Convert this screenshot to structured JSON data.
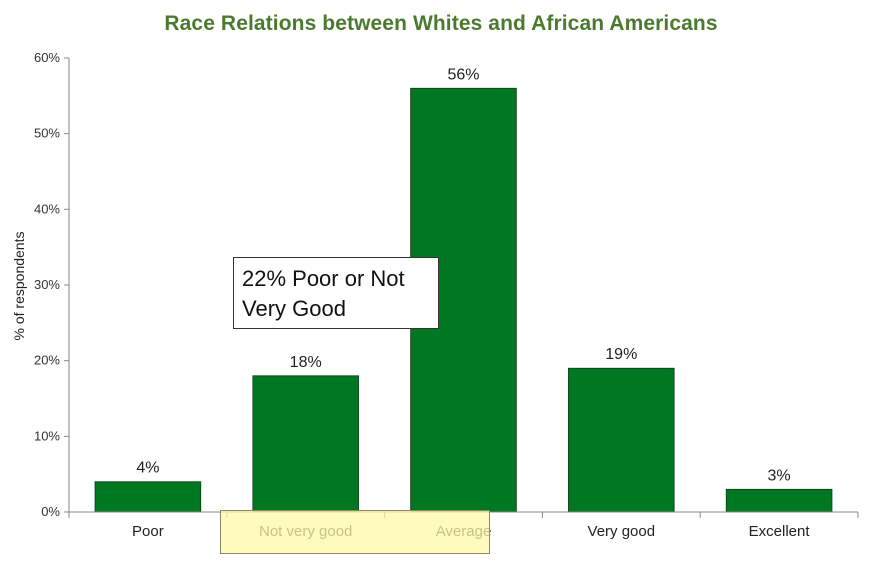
{
  "colors": {
    "bar": "#007722",
    "axis": "#888888",
    "title": "#4a7a2e"
  },
  "chart_data": {
    "type": "bar",
    "title": "Race Relations between Whites and African Americans",
    "xlabel": "",
    "ylabel": "% of respondents",
    "categories": [
      "Poor",
      "Not very good",
      "Average",
      "Very good",
      "Excellent"
    ],
    "values": [
      4,
      18,
      56,
      19,
      3
    ],
    "value_labels": [
      "4%",
      "18%",
      "56%",
      "19%",
      "3%"
    ],
    "ylim": [
      0,
      60
    ],
    "yticks": [
      0,
      10,
      20,
      30,
      40,
      50,
      60
    ],
    "ytick_labels": [
      "0%",
      "10%",
      "20%",
      "30%",
      "40%",
      "50%",
      "60%"
    ],
    "grid": false,
    "legend": "none",
    "annotation": "22% Poor or Not Very Good"
  }
}
